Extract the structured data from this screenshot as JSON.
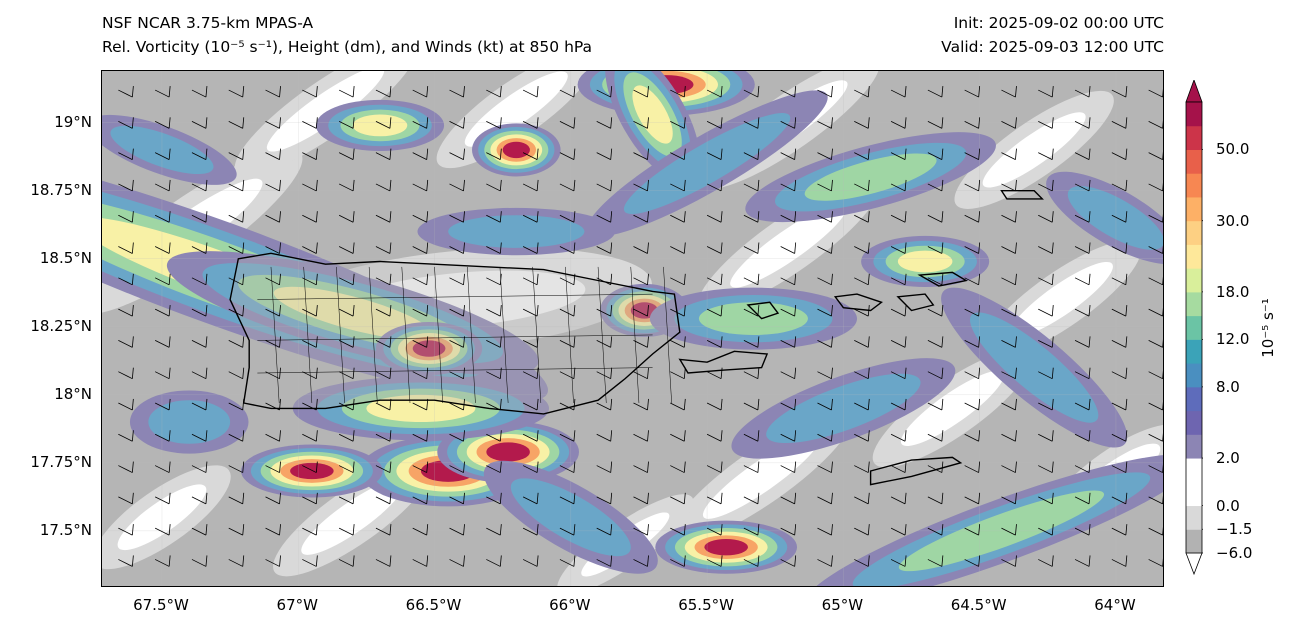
{
  "header": {
    "model": "NSF NCAR 3.75-km MPAS-A",
    "field": "Rel. Vorticity (10⁻⁵ s⁻¹), Height (dm), and Winds (kt) at 850 hPa",
    "init": "Init: 2025-09-02 00:00 UTC",
    "valid": "Valid: 2025-09-03 12:00 UTC"
  },
  "map": {
    "extent": {
      "lon_min": -67.72,
      "lon_max": -63.82,
      "lat_min": 17.29,
      "lat_max": 19.19
    },
    "lat_ticks": [
      {
        "value": 19.0,
        "label": "19°N"
      },
      {
        "value": 18.75,
        "label": "18.75°N"
      },
      {
        "value": 18.5,
        "label": "18.5°N"
      },
      {
        "value": 18.25,
        "label": "18.25°N"
      },
      {
        "value": 18.0,
        "label": "18°N"
      },
      {
        "value": 17.75,
        "label": "17.75°N"
      },
      {
        "value": 17.5,
        "label": "17.5°N"
      }
    ],
    "lon_ticks": [
      {
        "value": -67.5,
        "label": "67.5°W"
      },
      {
        "value": -67.0,
        "label": "67°W"
      },
      {
        "value": -66.5,
        "label": "66.5°W"
      },
      {
        "value": -66.0,
        "label": "66°W"
      },
      {
        "value": -65.5,
        "label": "65.5°W"
      },
      {
        "value": -65.0,
        "label": "65°W"
      },
      {
        "value": -64.5,
        "label": "64.5°W"
      },
      {
        "value": -64.0,
        "label": "64°W"
      }
    ],
    "coastlines": {
      "puerto_rico": [
        [
          -67.22,
          18.5
        ],
        [
          -67.1,
          18.52
        ],
        [
          -66.9,
          18.48
        ],
        [
          -66.7,
          18.49
        ],
        [
          -66.5,
          18.48
        ],
        [
          -66.3,
          18.47
        ],
        [
          -66.1,
          18.46
        ],
        [
          -65.9,
          18.42
        ],
        [
          -65.7,
          18.38
        ],
        [
          -65.62,
          18.37
        ],
        [
          -65.6,
          18.23
        ],
        [
          -65.7,
          18.15
        ],
        [
          -65.8,
          18.06
        ],
        [
          -65.9,
          17.98
        ],
        [
          -66.1,
          17.93
        ],
        [
          -66.3,
          17.95
        ],
        [
          -66.5,
          17.98
        ],
        [
          -66.7,
          17.98
        ],
        [
          -66.9,
          17.95
        ],
        [
          -67.1,
          17.95
        ],
        [
          -67.2,
          17.97
        ],
        [
          -67.18,
          18.1
        ],
        [
          -67.18,
          18.2
        ],
        [
          -67.25,
          18.35
        ],
        [
          -67.22,
          18.5
        ]
      ],
      "vieques": [
        [
          -65.6,
          18.13
        ],
        [
          -65.5,
          18.12
        ],
        [
          -65.4,
          18.16
        ],
        [
          -65.28,
          18.15
        ],
        [
          -65.3,
          18.1
        ],
        [
          -65.45,
          18.09
        ],
        [
          -65.57,
          18.08
        ],
        [
          -65.6,
          18.13
        ]
      ],
      "culebra": [
        [
          -65.35,
          18.33
        ],
        [
          -65.27,
          18.34
        ],
        [
          -65.24,
          18.3
        ],
        [
          -65.3,
          18.28
        ],
        [
          -65.35,
          18.33
        ]
      ],
      "st_thomas": [
        [
          -65.03,
          18.36
        ],
        [
          -64.95,
          18.37
        ],
        [
          -64.86,
          18.34
        ],
        [
          -64.9,
          18.31
        ],
        [
          -65.0,
          18.32
        ],
        [
          -65.03,
          18.36
        ]
      ],
      "st_john": [
        [
          -64.8,
          18.36
        ],
        [
          -64.7,
          18.37
        ],
        [
          -64.67,
          18.33
        ],
        [
          -64.75,
          18.31
        ],
        [
          -64.8,
          18.36
        ]
      ],
      "tortola": [
        [
          -64.72,
          18.44
        ],
        [
          -64.6,
          18.45
        ],
        [
          -64.55,
          18.42
        ],
        [
          -64.65,
          18.4
        ],
        [
          -64.72,
          18.44
        ]
      ],
      "anegada": [
        [
          -64.42,
          18.75
        ],
        [
          -64.3,
          18.75
        ],
        [
          -64.27,
          18.72
        ],
        [
          -64.4,
          18.72
        ],
        [
          -64.42,
          18.75
        ]
      ],
      "st_croix": [
        [
          -64.9,
          17.72
        ],
        [
          -64.75,
          17.76
        ],
        [
          -64.6,
          17.77
        ],
        [
          -64.57,
          17.75
        ],
        [
          -64.75,
          17.7
        ],
        [
          -64.9,
          17.67
        ],
        [
          -64.9,
          17.72
        ]
      ]
    },
    "vorticity_blobs": [
      {
        "lon": -67.3,
        "lat": 18.45,
        "rx": 0.55,
        "ry": 0.08,
        "rot": 20,
        "level": 18
      },
      {
        "lon": -66.8,
        "lat": 18.3,
        "rx": 0.3,
        "ry": 0.06,
        "rot": 15,
        "level": 18
      },
      {
        "lon": -66.52,
        "lat": 18.17,
        "rx": 0.06,
        "ry": 0.03,
        "rot": 0,
        "level": 60
      },
      {
        "lon": -66.45,
        "lat": 17.72,
        "rx": 0.1,
        "ry": 0.04,
        "rot": 0,
        "level": 60
      },
      {
        "lon": -66.23,
        "lat": 17.79,
        "rx": 0.08,
        "ry": 0.035,
        "rot": 0,
        "level": 60
      },
      {
        "lon": -66.95,
        "lat": 17.72,
        "rx": 0.08,
        "ry": 0.03,
        "rot": 0,
        "level": 60
      },
      {
        "lon": -65.65,
        "lat": 19.14,
        "rx": 0.1,
        "ry": 0.035,
        "rot": 0,
        "level": 60
      },
      {
        "lon": -65.43,
        "lat": 17.44,
        "rx": 0.08,
        "ry": 0.03,
        "rot": 0,
        "level": 60
      },
      {
        "lon": -65.73,
        "lat": 18.31,
        "rx": 0.05,
        "ry": 0.03,
        "rot": 0,
        "level": 60
      },
      {
        "lon": -66.2,
        "lat": 18.9,
        "rx": 0.05,
        "ry": 0.03,
        "rot": 0,
        "level": 60
      },
      {
        "lon": -64.7,
        "lat": 18.49,
        "rx": 0.1,
        "ry": 0.04,
        "rot": 0,
        "level": 18
      },
      {
        "lon": -65.7,
        "lat": 19.03,
        "rx": 0.12,
        "ry": 0.05,
        "rot": 60,
        "level": 18
      },
      {
        "lon": -66.7,
        "lat": 18.99,
        "rx": 0.1,
        "ry": 0.04,
        "rot": 0,
        "level": 18
      },
      {
        "lon": -66.55,
        "lat": 17.95,
        "rx": 0.2,
        "ry": 0.05,
        "rot": 0,
        "level": 18
      },
      {
        "lon": -65.33,
        "lat": 18.28,
        "rx": 0.2,
        "ry": 0.06,
        "rot": 0,
        "level": 12
      },
      {
        "lon": -64.42,
        "lat": 17.5,
        "rx": 0.4,
        "ry": 0.06,
        "rot": -20,
        "level": 12
      },
      {
        "lon": -64.9,
        "lat": 18.8,
        "rx": 0.25,
        "ry": 0.06,
        "rot": -15,
        "level": 12
      },
      {
        "lon": -65.5,
        "lat": 18.85,
        "rx": 0.35,
        "ry": 0.07,
        "rot": -30,
        "level": 8
      },
      {
        "lon": -64.3,
        "lat": 18.1,
        "rx": 0.3,
        "ry": 0.08,
        "rot": 40,
        "level": 8
      },
      {
        "lon": -65.0,
        "lat": 17.95,
        "rx": 0.3,
        "ry": 0.08,
        "rot": -20,
        "level": 8
      },
      {
        "lon": -67.4,
        "lat": 17.9,
        "rx": 0.15,
        "ry": 0.08,
        "rot": 0,
        "level": 8
      },
      {
        "lon": -66.0,
        "lat": 17.55,
        "rx": 0.25,
        "ry": 0.08,
        "rot": 30,
        "level": 8
      },
      {
        "lon": -64.0,
        "lat": 18.65,
        "rx": 0.2,
        "ry": 0.07,
        "rot": 30,
        "level": 8
      },
      {
        "lon": -66.2,
        "lat": 18.6,
        "rx": 0.25,
        "ry": 0.06,
        "rot": 0,
        "level": 8
      },
      {
        "lon": -67.5,
        "lat": 18.9,
        "rx": 0.2,
        "ry": 0.06,
        "rot": 20,
        "level": 8
      }
    ],
    "shade_bands": [
      {
        "lon": -67.4,
        "lat": 18.6,
        "rx": 0.5,
        "ry": 0.12,
        "rot": -35,
        "level": -1.5
      },
      {
        "lon": -66.9,
        "lat": 19.05,
        "rx": 0.4,
        "ry": 0.1,
        "rot": -35,
        "level": -1.5
      },
      {
        "lon": -66.2,
        "lat": 19.05,
        "rx": 0.35,
        "ry": 0.1,
        "rot": -35,
        "level": -1.5
      },
      {
        "lon": -65.2,
        "lat": 19.0,
        "rx": 0.4,
        "ry": 0.1,
        "rot": -35,
        "level": -1.5
      },
      {
        "lon": -64.3,
        "lat": 18.9,
        "rx": 0.35,
        "ry": 0.1,
        "rot": -35,
        "level": -1.5
      },
      {
        "lon": -65.2,
        "lat": 18.55,
        "rx": 0.4,
        "ry": 0.1,
        "rot": -35,
        "level": -1.5
      },
      {
        "lon": -64.2,
        "lat": 18.35,
        "rx": 0.35,
        "ry": 0.1,
        "rot": -35,
        "level": -1.5
      },
      {
        "lon": -65.3,
        "lat": 17.7,
        "rx": 0.4,
        "ry": 0.1,
        "rot": -35,
        "level": -1.5
      },
      {
        "lon": -64.6,
        "lat": 17.95,
        "rx": 0.35,
        "ry": 0.1,
        "rot": -35,
        "level": -1.5
      },
      {
        "lon": -66.8,
        "lat": 17.55,
        "rx": 0.35,
        "ry": 0.1,
        "rot": -35,
        "level": -1.5
      },
      {
        "lon": -67.5,
        "lat": 17.55,
        "rx": 0.3,
        "ry": 0.1,
        "rot": -35,
        "level": -1.5
      },
      {
        "lon": -65.8,
        "lat": 17.45,
        "rx": 0.3,
        "ry": 0.08,
        "rot": -35,
        "level": -1.5
      },
      {
        "lon": -64.0,
        "lat": 17.7,
        "rx": 0.3,
        "ry": 0.1,
        "rot": -35,
        "level": -1.5
      },
      {
        "lon": -66.4,
        "lat": 18.35,
        "rx": 0.7,
        "ry": 0.18,
        "rot": -5,
        "level": -1.5
      }
    ],
    "colors": {
      "level_-6": "#b2b2b2",
      "level_-1.5": "#d9d9d9",
      "level_0": "#ffffff",
      "level_2": "#8c85b4",
      "level_8": "#6aa6c8",
      "level_12": "#9fd6a4",
      "level_18": "#f8f1a6",
      "level_30": "#f7a466",
      "level_60": "#b31a4c",
      "background_gray": "#b5b5b5",
      "island_gray": "#b3b3b3"
    }
  },
  "colorbar": {
    "unit": "10⁻⁵ s⁻¹",
    "levels": [
      {
        "value": -6.0,
        "color": "#b2b2b2",
        "label": "−6.0"
      },
      {
        "value": -1.5,
        "color": "#d9d9d9",
        "label": "−1.5"
      },
      {
        "value": 0.0,
        "color": "#ffffff",
        "label": "0.0"
      },
      {
        "value": 1.0,
        "color": "#ffffff",
        "label": ""
      },
      {
        "value": 2.0,
        "color": "#8c85b4",
        "label": "2.0"
      },
      {
        "value": 4.0,
        "color": "#6e65b0",
        "label": ""
      },
      {
        "value": 6.0,
        "color": "#5e6cbb",
        "label": ""
      },
      {
        "value": 8.0,
        "color": "#4a8fc0",
        "label": "8.0"
      },
      {
        "value": 10.0,
        "color": "#3ba3b8",
        "label": ""
      },
      {
        "value": 12.0,
        "color": "#6bc4a5",
        "label": "12.0"
      },
      {
        "value": 15.0,
        "color": "#a6dba0",
        "label": ""
      },
      {
        "value": 18.0,
        "color": "#d9ef9b",
        "label": "18.0"
      },
      {
        "value": 22.0,
        "color": "#fee89a",
        "label": ""
      },
      {
        "value": 26.0,
        "color": "#fdd083",
        "label": ""
      },
      {
        "value": 30.0,
        "color": "#fdb066",
        "label": "30.0"
      },
      {
        "value": 35.0,
        "color": "#f78752",
        "label": ""
      },
      {
        "value": 40.0,
        "color": "#e8604a",
        "label": ""
      },
      {
        "value": 50.0,
        "color": "#cc3449",
        "label": "50.0"
      },
      {
        "value": 60.0,
        "color": "#a5124a",
        "label": ""
      }
    ],
    "extend_top_color": "#a5124a",
    "extend_bottom_color": "#ffffff"
  }
}
